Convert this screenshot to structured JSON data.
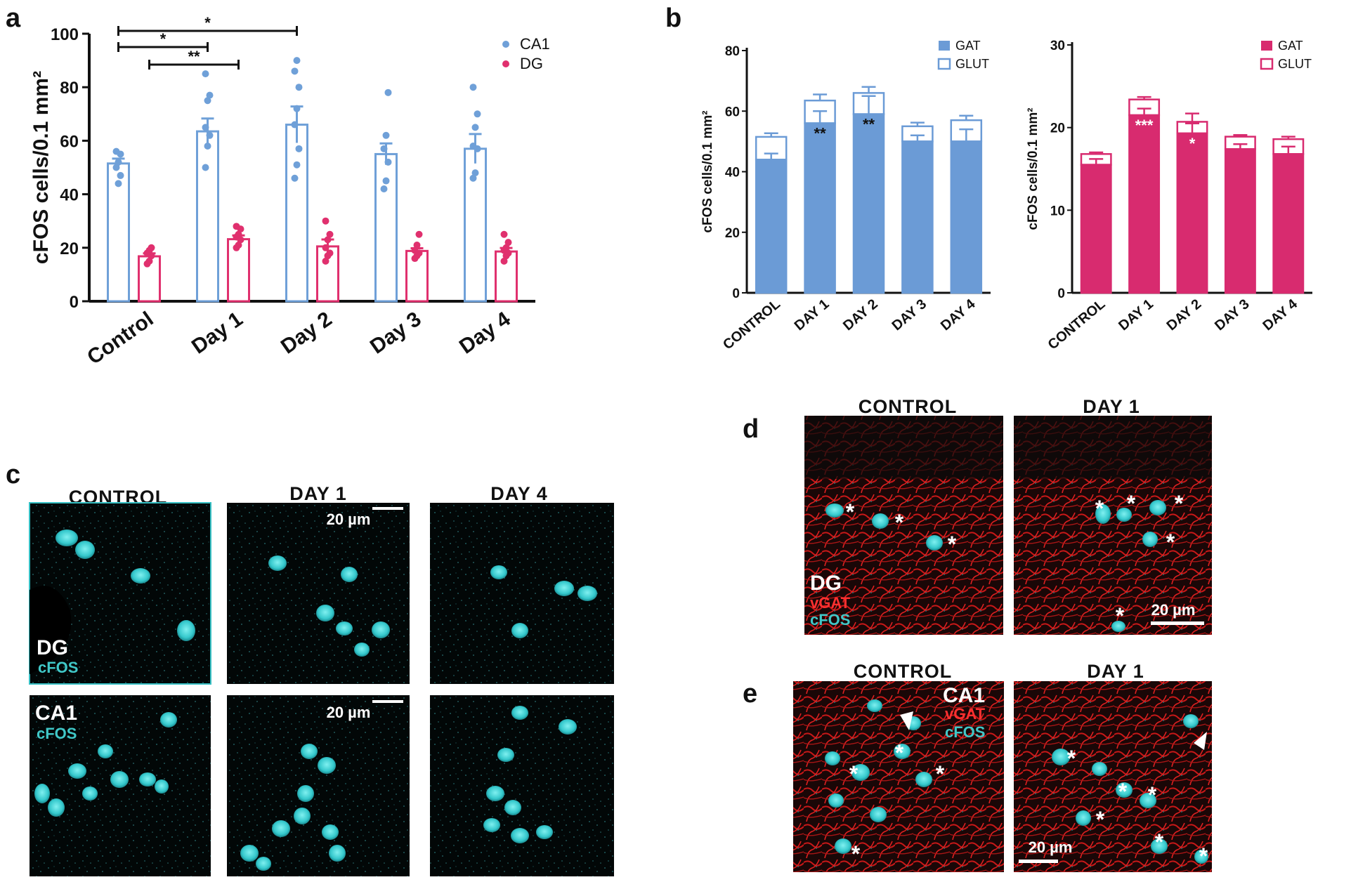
{
  "panel_labels": {
    "a": "a",
    "b": "b",
    "c": "c",
    "d": "d",
    "e": "e"
  },
  "chart_data": [
    {
      "id": "panel-a",
      "type": "bar",
      "categories": [
        "Control",
        "Day 1",
        "Day 2",
        "Day 3",
        "Day 4"
      ],
      "ylabel": "cFOS cells/0.1 mm²",
      "ylim": [
        0,
        100
      ],
      "yticks": [
        0,
        20,
        40,
        60,
        80,
        100
      ],
      "series": [
        {
          "name": "CA1",
          "color": "#6fa0d8",
          "values": [
            51.5,
            63.5,
            66,
            55,
            57
          ],
          "sem": [
            1.8,
            4.8,
            6.8,
            4,
            5.5
          ],
          "points": [
            [
              50,
              52,
              55,
              56,
              44,
              47
            ],
            [
              50,
              58,
              62,
              65,
              75,
              77,
              85
            ],
            [
              46,
              51,
              57,
              66,
              72,
              80,
              86,
              90
            ],
            [
              42,
              45,
              52,
              57,
              62,
              78
            ],
            [
              46,
              48,
              57,
              58,
              65,
              70,
              80
            ]
          ]
        },
        {
          "name": "DG",
          "color": "#e0306e",
          "values": [
            16.8,
            23.2,
            20.5,
            18.8,
            18.6
          ],
          "sem": [
            1.1,
            1.4,
            2.6,
            1.0,
            1.3
          ],
          "points": [
            [
              14,
              15,
              17,
              18,
              19,
              20
            ],
            [
              20,
              21,
              23,
              24,
              25,
              27,
              28
            ],
            [
              15,
              17,
              18,
              20,
              23,
              25,
              30
            ],
            [
              16,
              17,
              18,
              19,
              21,
              25
            ],
            [
              15,
              17,
              18,
              19,
              20,
              22,
              25
            ]
          ]
        }
      ],
      "significance": [
        {
          "from": "Control",
          "to": "Day 2",
          "series": "CA1",
          "label": "*"
        },
        {
          "from": "Control",
          "to": "Day 1",
          "series": "CA1",
          "label": "*"
        },
        {
          "from": "Control",
          "to": "Day 1",
          "series": "DG",
          "label": "**"
        }
      ]
    },
    {
      "id": "panel-b-ca1",
      "type": "bar",
      "stacked": true,
      "categories": [
        "CONTROL",
        "DAY 1",
        "DAY 2",
        "DAY 3",
        "DAY 4"
      ],
      "ylabel": "cFOS cells/0.1 mm²",
      "ylim": [
        0,
        80
      ],
      "yticks": [
        0,
        20,
        40,
        60,
        80
      ],
      "color": "#6b9bd6",
      "series": [
        {
          "name": "GAT",
          "values": [
            44,
            56,
            59,
            50,
            50
          ],
          "sem": [
            2,
            4,
            6,
            2,
            4
          ]
        },
        {
          "name": "GLUT",
          "values": [
            7.5,
            7.5,
            7,
            5,
            7
          ],
          "sem": [
            1.2,
            2,
            2,
            1.2,
            1.5
          ]
        }
      ],
      "stars": [
        "",
        "**",
        "**",
        "",
        ""
      ]
    },
    {
      "id": "panel-b-dg",
      "type": "bar",
      "stacked": true,
      "categories": [
        "CONTROL",
        "DAY 1",
        "DAY 2",
        "DAY 3",
        "DAY 4"
      ],
      "ylabel": "cFOS cells/0.1 mm²",
      "ylim": [
        0,
        30
      ],
      "yticks": [
        0,
        10,
        20,
        30
      ],
      "color": "#d82b6f",
      "series": [
        {
          "name": "GAT",
          "values": [
            15.5,
            21.5,
            19.3,
            17.4,
            16.8
          ],
          "sem": [
            0.7,
            0.8,
            1.2,
            0.6,
            0.9
          ]
        },
        {
          "name": "GLUT",
          "values": [
            1.3,
            1.9,
            1.4,
            1.5,
            1.8
          ],
          "sem": [
            0.2,
            0.3,
            1.0,
            0.2,
            0.3
          ]
        }
      ],
      "stars": [
        "",
        "***",
        "*",
        "",
        ""
      ]
    }
  ],
  "panel_c": {
    "col_titles": [
      "CONTROL",
      "DAY 1",
      "DAY 4"
    ],
    "row_labels": [
      {
        "region": "DG",
        "stain": "cFOS"
      },
      {
        "region": "CA1",
        "stain": "cFOS"
      }
    ],
    "scale": "20 µm"
  },
  "panel_d": {
    "col_titles": [
      "CONTROL",
      "DAY 1"
    ],
    "labels": {
      "region": "DG",
      "stain1": "vGAT",
      "stain2": "cFOS"
    },
    "scale": "20 µm"
  },
  "panel_e": {
    "col_titles": [
      "CONTROL",
      "DAY 1"
    ],
    "labels": {
      "region": "CA1",
      "stain1": "vGAT",
      "stain2": "cFOS"
    },
    "scale": "20 µm"
  },
  "colors": {
    "ca1": "#6fa0d8",
    "dg": "#e0306e",
    "cyan": "#3cc8c8",
    "red": "#d81a1a"
  }
}
